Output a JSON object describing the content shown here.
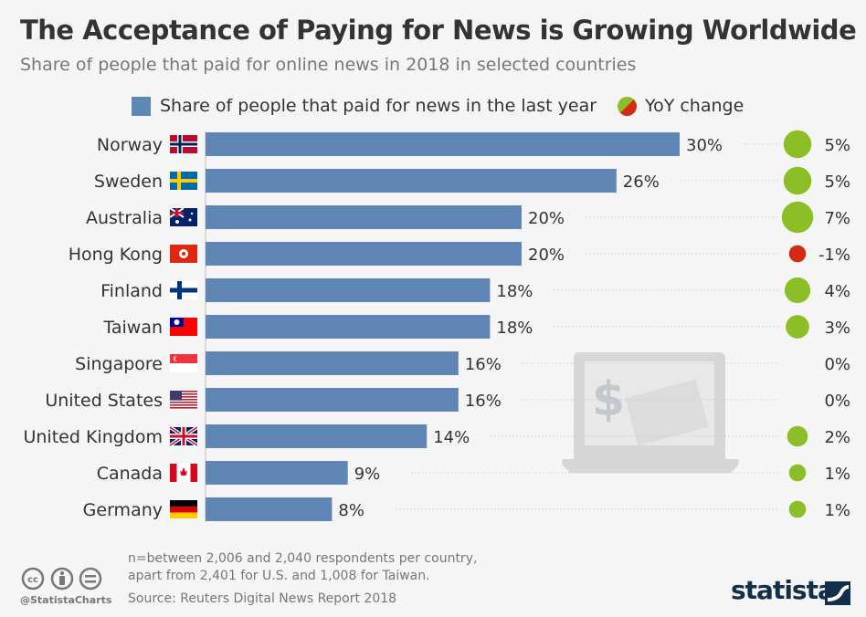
{
  "title": "The Acceptance of Paying for News is Growing Worldwide",
  "subtitle": "Share of people that paid for online news in 2018 in selected countries",
  "colors": {
    "bar": "#5f86b5",
    "positive": "#8cbf26",
    "negative": "#d42a12",
    "text": "#333333"
  },
  "chart_data": {
    "type": "bar",
    "orientation": "horizontal",
    "categories": [
      "Norway",
      "Sweden",
      "Australia",
      "Hong Kong",
      "Finland",
      "Taiwan",
      "Singapore",
      "United States",
      "United Kingdom",
      "Canada",
      "Germany"
    ],
    "series": [
      {
        "name": "Share of people that paid for news in the last year",
        "values": [
          30,
          26,
          20,
          20,
          18,
          18,
          16,
          16,
          14,
          9,
          8
        ],
        "labels": [
          "30%",
          "26%",
          "20%",
          "20%",
          "18%",
          "18%",
          "16%",
          "16%",
          "14%",
          "9%",
          "8%"
        ]
      },
      {
        "name": "YoY change",
        "values": [
          5,
          5,
          7,
          -1,
          4,
          3,
          0,
          0,
          2,
          1,
          1
        ],
        "labels": [
          "5%",
          "5%",
          "7%",
          "-1%",
          "4%",
          "3%",
          "0%",
          "0%",
          "2%",
          "1%",
          "1%"
        ]
      }
    ],
    "legend_placement": "top"
  },
  "footer": {
    "note_line1": "n=between 2,006 and 2,040 respondents per country,",
    "note_line2": "apart from 2,401 for U.S. and 1,008 for Taiwan.",
    "source": "Source: Reuters Digital News Report 2018",
    "handle": "@StatistaCharts",
    "brand": "statista"
  }
}
